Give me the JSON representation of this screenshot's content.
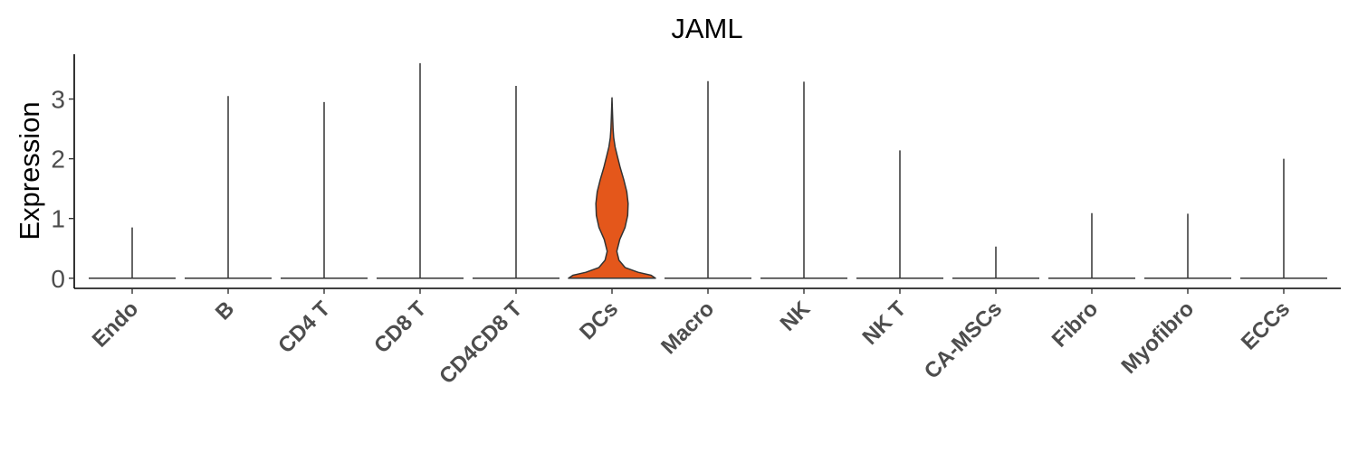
{
  "chart_data": {
    "type": "violin",
    "title": "JAML",
    "ylabel": "Expression",
    "xlabel": "",
    "ylim": [
      -0.17,
      3.75
    ],
    "yticks": [
      0,
      1,
      2,
      3
    ],
    "categories": [
      "Endo",
      "B",
      "CD4 T",
      "CD8 T",
      "CD4CD8 T",
      "DCs",
      "Macro",
      "NK",
      "NK T",
      "CA-MSCs",
      "Fibro",
      "Myofibro",
      "ECCs"
    ],
    "max_values": [
      0.85,
      3.05,
      2.95,
      3.6,
      3.22,
      3.02,
      3.3,
      3.29,
      2.14,
      0.53,
      1.09,
      1.08,
      2.0
    ],
    "highlight": {
      "category": "DCs",
      "fill": "#e4571b",
      "density_profile": [
        [
          0.0,
          1.0
        ],
        [
          0.05,
          0.9
        ],
        [
          0.1,
          0.6
        ],
        [
          0.18,
          0.3
        ],
        [
          0.3,
          0.16
        ],
        [
          0.45,
          0.11
        ],
        [
          0.65,
          0.18
        ],
        [
          0.85,
          0.3
        ],
        [
          1.05,
          0.36
        ],
        [
          1.25,
          0.37
        ],
        [
          1.45,
          0.34
        ],
        [
          1.65,
          0.27
        ],
        [
          1.85,
          0.19
        ],
        [
          2.05,
          0.12
        ],
        [
          2.2,
          0.07
        ],
        [
          2.35,
          0.04
        ],
        [
          2.5,
          0.025
        ],
        [
          2.7,
          0.015
        ],
        [
          3.02,
          0.0
        ]
      ]
    },
    "grid": false,
    "legend": "none"
  }
}
